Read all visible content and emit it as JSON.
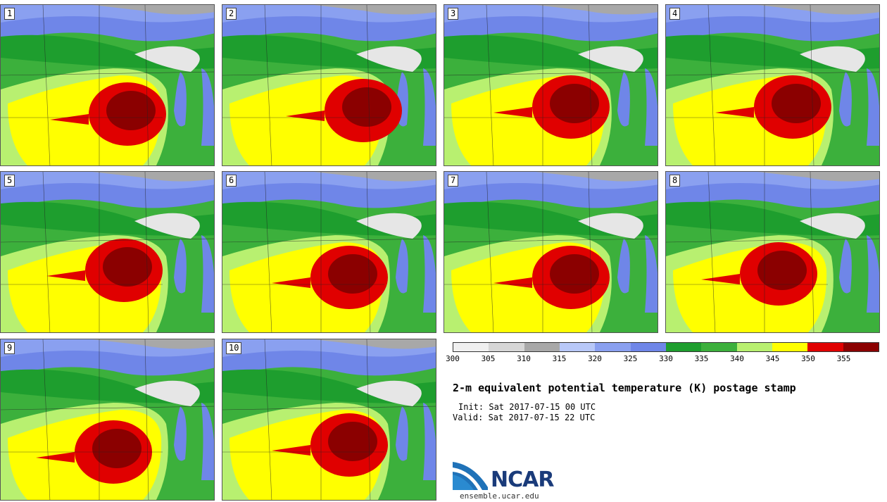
{
  "panels": [
    {
      "label": "1"
    },
    {
      "label": "2"
    },
    {
      "label": "3"
    },
    {
      "label": "4"
    },
    {
      "label": "5"
    },
    {
      "label": "6"
    },
    {
      "label": "7"
    },
    {
      "label": "8"
    },
    {
      "label": "9"
    },
    {
      "label": "10"
    }
  ],
  "colorbar": {
    "colors": [
      "#f0f0f0",
      "#d6d6d6",
      "#a8a8a8",
      "#b8c8f8",
      "#8aa0f0",
      "#6f86e8",
      "#1e9e2e",
      "#3cb03c",
      "#b8f070",
      "#ffff00",
      "#e00000",
      "#8b0000"
    ],
    "ticks": [
      "300",
      "305",
      "310",
      "315",
      "320",
      "325",
      "330",
      "335",
      "340",
      "345",
      "350",
      "355"
    ]
  },
  "title": "2-m equivalent potential temperature (K) postage stamp",
  "init": "Init: Sat 2017-07-15 00 UTC",
  "valid": "Valid: Sat 2017-07-15 22 UTC",
  "logo": {
    "text": "NCAR",
    "site": "ensemble.ucar.edu"
  }
}
